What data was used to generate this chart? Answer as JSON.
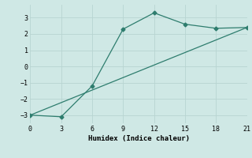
{
  "line1_x": [
    0,
    3,
    6,
    9,
    12,
    15,
    18,
    21
  ],
  "line1_y": [
    -3.0,
    -3.1,
    -1.2,
    2.3,
    3.3,
    2.6,
    2.35,
    2.4
  ],
  "line2_x": [
    0,
    21
  ],
  "line2_y": [
    -3.0,
    2.4
  ],
  "line_color": "#2e7d6e",
  "marker": "D",
  "marker_size": 2.5,
  "xlabel": "Humidex (Indice chaleur)",
  "xlim": [
    0,
    21
  ],
  "ylim": [
    -3.5,
    3.8
  ],
  "xticks": [
    0,
    3,
    6,
    9,
    12,
    15,
    18,
    21
  ],
  "yticks": [
    -3,
    -2,
    -1,
    0,
    1,
    2,
    3
  ],
  "bg_color": "#cfe8e5",
  "grid_color": "#b8d4d1",
  "font_family": "monospace"
}
